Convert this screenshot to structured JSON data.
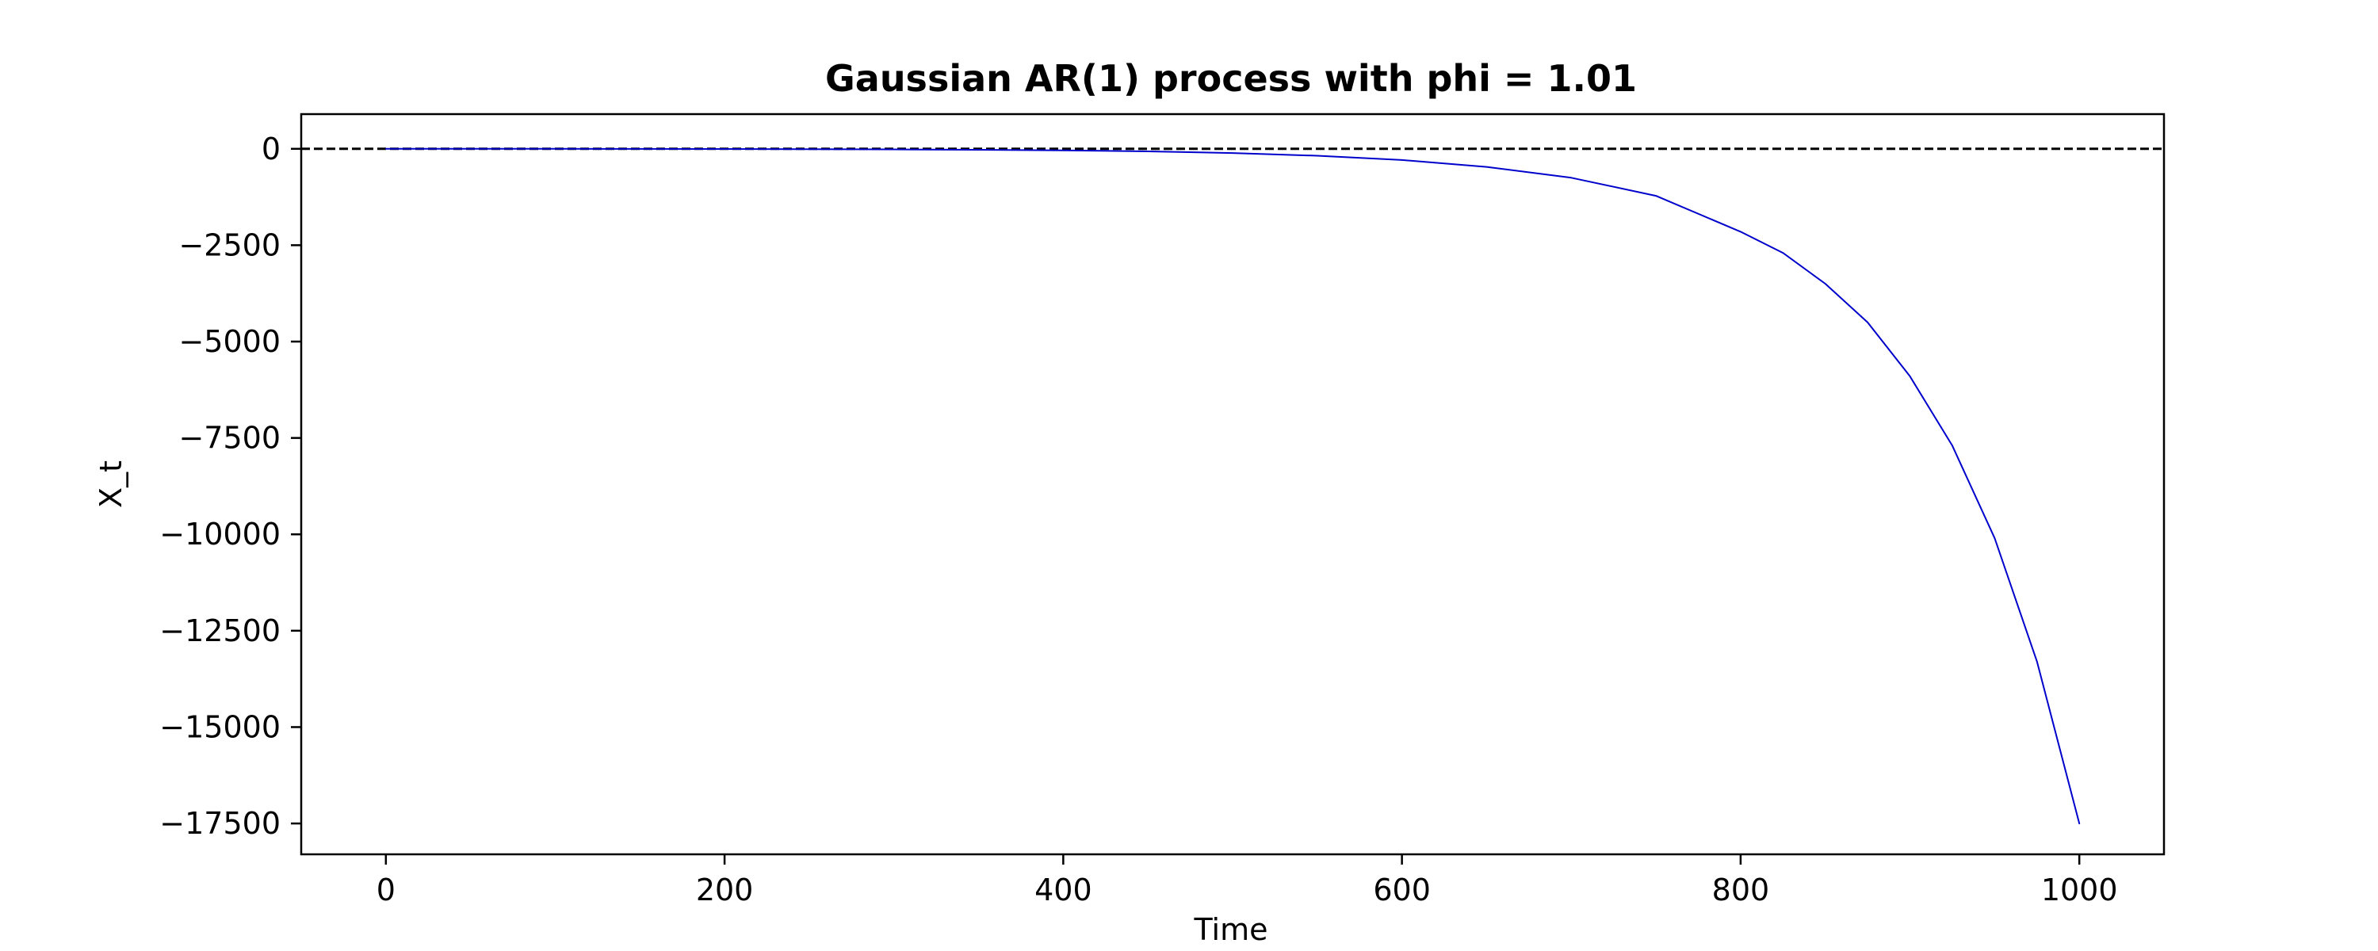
{
  "chart_data": {
    "type": "line",
    "title": "Gaussian AR(1) process with phi = 1.01",
    "xlabel": "Time",
    "ylabel": "X_t",
    "xlim": [
      -50,
      1050
    ],
    "ylim": [
      -18300,
      900
    ],
    "xticks": [
      0,
      200,
      400,
      600,
      800,
      1000
    ],
    "xtick_labels": [
      "0",
      "200",
      "400",
      "600",
      "800",
      "1000"
    ],
    "yticks": [
      0,
      -2500,
      -5000,
      -7500,
      -10000,
      -12500,
      -15000,
      -17500
    ],
    "ytick_labels": [
      "0",
      "−2500",
      "−5000",
      "−7500",
      "−10000",
      "−12500",
      "−15000",
      "−17500"
    ],
    "grid": false,
    "legend": "none",
    "series": [
      {
        "color": "#0000cc",
        "style": "solid",
        "x": [
          0,
          50,
          100,
          150,
          200,
          250,
          300,
          350,
          400,
          450,
          500,
          550,
          600,
          650,
          700,
          750,
          800,
          825,
          850,
          875,
          900,
          925,
          950,
          975,
          1000
        ],
        "y": [
          0,
          0,
          -1,
          -3,
          -5,
          -9,
          -15,
          -25,
          -40,
          -66,
          -110,
          -180,
          -290,
          -470,
          -750,
          -1220,
          -2150,
          -2700,
          -3500,
          -4500,
          -5900,
          -7700,
          -10100,
          -13300,
          -17500
        ]
      }
    ],
    "reference_lines": [
      {
        "orientation": "horizontal",
        "y": 0,
        "style": "dashed",
        "color": "#000000"
      }
    ]
  }
}
